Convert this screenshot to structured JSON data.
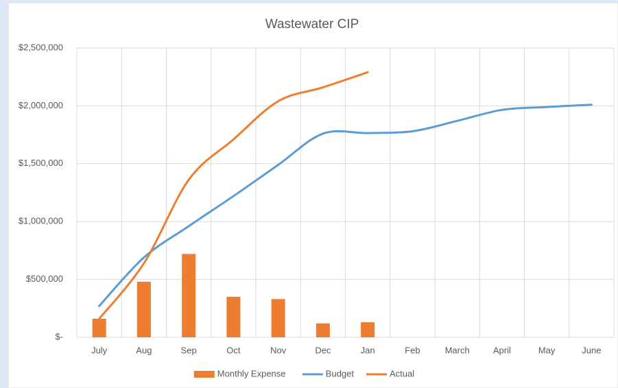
{
  "chart_data": {
    "type": "combo",
    "title": "Wastewater CIP",
    "categories": [
      "July",
      "Aug",
      "Sep",
      "Oct",
      "Nov",
      "Dec",
      "Jan",
      "Feb",
      "March",
      "April",
      "May",
      "June"
    ],
    "series": [
      {
        "name": "Monthly Expense",
        "type": "bar",
        "color": "#ed7d31",
        "values": [
          160000,
          480000,
          720000,
          350000,
          330000,
          120000,
          130000,
          null,
          null,
          null,
          null,
          null
        ]
      },
      {
        "name": "Budget",
        "type": "line",
        "color": "#5b9bd5",
        "values": [
          270000,
          690000,
          960000,
          1220000,
          1490000,
          1760000,
          1765000,
          1780000,
          1870000,
          1965000,
          1990000,
          2010000
        ]
      },
      {
        "name": "Actual",
        "type": "line",
        "color": "#ed7d31",
        "values": [
          160000,
          640000,
          1360000,
          1710000,
          2040000,
          2160000,
          2290000,
          null,
          null,
          null,
          null,
          null
        ]
      }
    ],
    "ylim": [
      0,
      2500000
    ],
    "yticks": [
      {
        "value": 0,
        "label": "$-"
      },
      {
        "value": 500000,
        "label": "$500,000"
      },
      {
        "value": 1000000,
        "label": "$1,000,000"
      },
      {
        "value": 1500000,
        "label": "$1,500,000"
      },
      {
        "value": 2000000,
        "label": "$2,000,000"
      },
      {
        "value": 2500000,
        "label": "$2,500,000"
      }
    ],
    "grid": true,
    "legend": "bottom"
  }
}
